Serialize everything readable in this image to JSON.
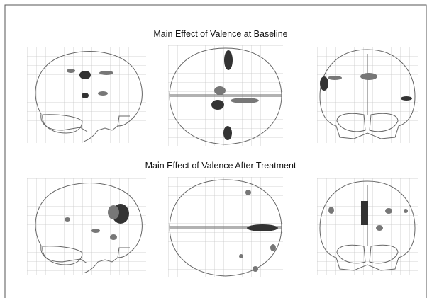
{
  "figure": {
    "panels": [
      {
        "title": "Main Effect of Valence at Baseline"
      },
      {
        "title": "Main Effect of Valence After Treatment"
      }
    ]
  }
}
